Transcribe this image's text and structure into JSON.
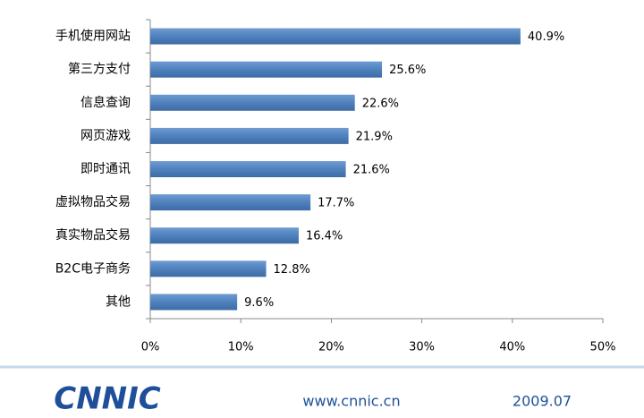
{
  "chart_data": {
    "type": "barh",
    "categories": [
      "手机使用网站",
      "第三方支付",
      "信息查询",
      "网页游戏",
      "即时通讯",
      "虚拟物品交易",
      "真实物品交易",
      "B2C电子商务",
      "其他"
    ],
    "values": [
      40.9,
      25.6,
      22.6,
      21.9,
      21.6,
      17.7,
      16.4,
      12.8,
      9.6
    ],
    "value_labels": [
      "40.9%",
      "25.6%",
      "22.6%",
      "21.9%",
      "21.6%",
      "17.7%",
      "16.4%",
      "12.8%",
      "9.6%"
    ],
    "color": "#4f81bd",
    "xlim": [
      0,
      50
    ],
    "xticks": [
      {
        "value": 0,
        "label": "0%"
      },
      {
        "value": 10,
        "label": "10%"
      },
      {
        "value": 20,
        "label": "20%"
      },
      {
        "value": 30,
        "label": "30%"
      },
      {
        "value": 40,
        "label": "40%"
      },
      {
        "value": 50,
        "label": "50%"
      }
    ]
  },
  "footer": {
    "logo": "CNNIC",
    "url": "www.cnnic.cn",
    "date": "2009.07"
  }
}
